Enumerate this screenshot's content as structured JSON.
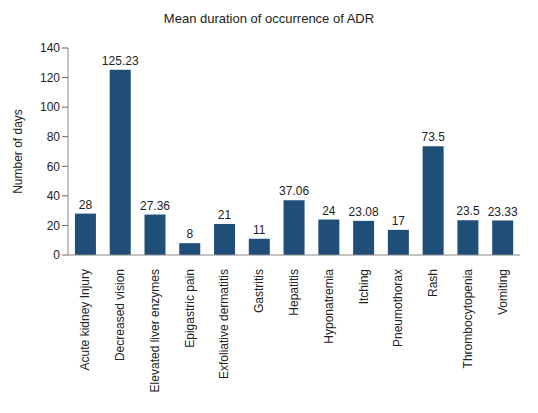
{
  "chart_data": {
    "type": "bar",
    "title": "Mean duration of occurrence of ADR",
    "y_label": "Number of days",
    "categories": [
      "Acute kidney Injury",
      "Decreased vision",
      "Elevated liver enzymes",
      "Epigastric pain",
      "Exfoliative dermatitis",
      "Gastritis",
      "Hepatitis",
      "Hyponatremia",
      "Itching",
      "Pneumothorax",
      "Rash",
      "Thrombocytopenia",
      "Vomiting"
    ],
    "values": [
      28,
      125.23,
      27.36,
      8,
      21,
      11,
      37.06,
      24,
      23.08,
      17,
      73.5,
      23.5,
      23.33
    ],
    "color": "#1f4e79",
    "ylim": [
      0,
      140
    ],
    "yticks": [
      0,
      20,
      40,
      60,
      80,
      100,
      120,
      140
    ],
    "grid": false,
    "data_labels": true
  }
}
